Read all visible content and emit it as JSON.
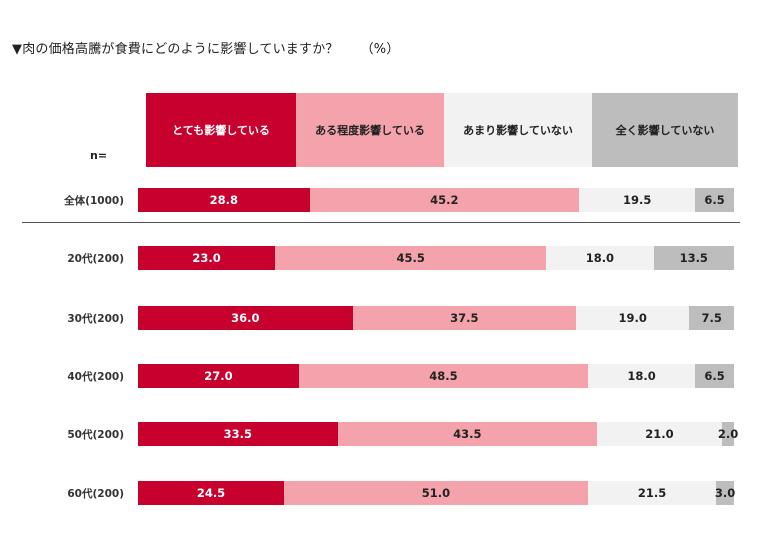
{
  "title": "▼肉の価格高騰が食費にどのように影響していますか？",
  "unit": "（%）",
  "n_label": "n=",
  "colors": [
    "#c8002d",
    "#f4a3ad",
    "#f2f2f2",
    "#bdbdbd"
  ],
  "text_colors": [
    "#ffffff",
    "#222222",
    "#222222",
    "#222222"
  ],
  "chart_data": {
    "type": "bar",
    "orientation": "horizontal-stacked-100",
    "categories": [
      "全体(1000)",
      "20代(200)",
      "30代(200)",
      "40代(200)",
      "50代(200)",
      "60代(200)"
    ],
    "series": [
      {
        "name": "とても影響している",
        "values": [
          28.8,
          23.0,
          36.0,
          27.0,
          33.5,
          24.5
        ]
      },
      {
        "name": "ある程度影響している",
        "values": [
          45.2,
          45.5,
          37.5,
          48.5,
          43.5,
          51.0
        ]
      },
      {
        "name": "あまり影響していない",
        "values": [
          19.5,
          18.0,
          19.0,
          18.0,
          21.0,
          21.5
        ]
      },
      {
        "name": "全く影響していない",
        "values": [
          6.5,
          13.5,
          7.5,
          6.5,
          2.0,
          3.0
        ]
      }
    ],
    "value_labels": [
      [
        "28.8",
        "45.2",
        "19.5",
        "6.5"
      ],
      [
        "23.0",
        "45.5",
        "18.0",
        "13.5"
      ],
      [
        "36.0",
        "37.5",
        "19.0",
        "7.5"
      ],
      [
        "27.0",
        "48.5",
        "18.0",
        "6.5"
      ],
      [
        "33.5",
        "43.5",
        "21.0",
        "2.0"
      ],
      [
        "24.5",
        "51.0",
        "21.5",
        "3.0"
      ]
    ],
    "xlim": [
      0,
      100
    ],
    "grid": false,
    "legend": "top"
  }
}
